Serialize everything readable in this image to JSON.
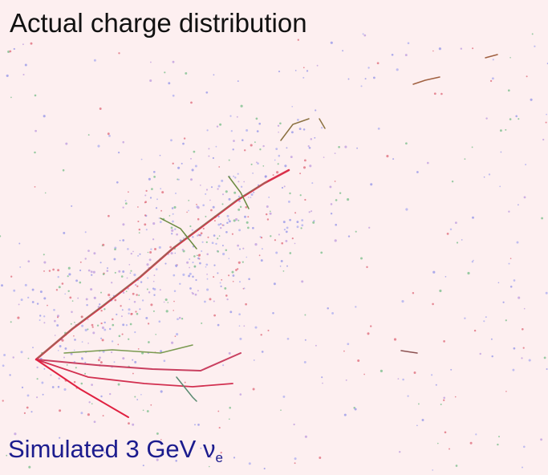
{
  "header": {
    "title": "Actual charge distribution"
  },
  "caption": {
    "text": "Simulated 3 GeV ν",
    "subscript": "e"
  }
}
